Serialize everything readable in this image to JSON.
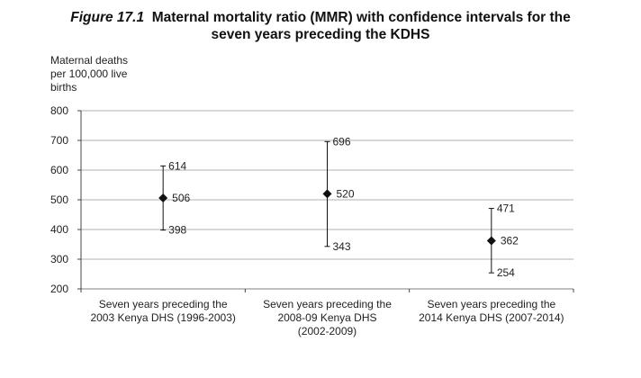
{
  "title": {
    "figure_number": "Figure 17.1",
    "line1_text": "Maternal mortality ratio (MMR) with confidence intervals for the",
    "line2_text": "seven years preceding the KDHS"
  },
  "chart_data": {
    "type": "errorbar",
    "ylabel_lines": [
      "Maternal deaths",
      "per 100,000 live",
      "births"
    ],
    "ylim": [
      200,
      800
    ],
    "yticks": [
      200,
      300,
      400,
      500,
      600,
      700,
      800
    ],
    "grid": true,
    "categories": [
      [
        "Seven years preceding the",
        "2003 Kenya DHS (1996-2003)"
      ],
      [
        "Seven years preceding the",
        "2008-09 Kenya DHS",
        "(2002-2009)"
      ],
      [
        "Seven years preceding the",
        "2014 Kenya DHS (2007-2014)"
      ]
    ],
    "points": [
      {
        "value": 506,
        "lower": 398,
        "upper": 614
      },
      {
        "value": 520,
        "lower": 343,
        "upper": 696
      },
      {
        "value": 362,
        "lower": 254,
        "upper": 471
      }
    ]
  },
  "colors": {
    "grid": "#999999",
    "marker": "#111111",
    "axis": "#444444"
  }
}
